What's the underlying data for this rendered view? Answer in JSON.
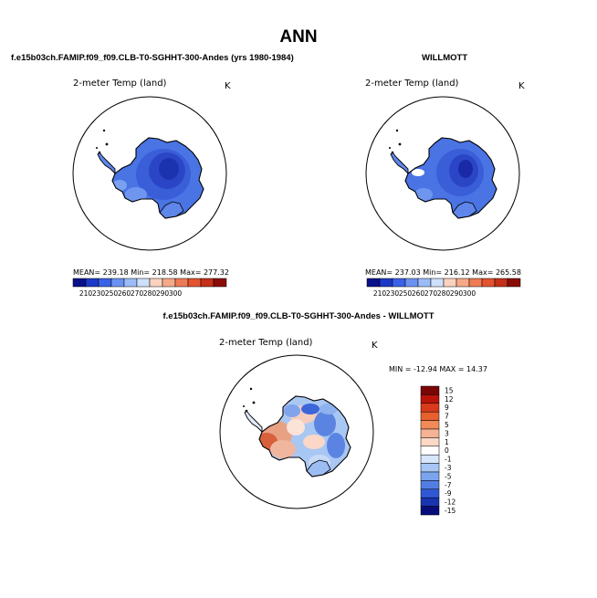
{
  "figure": {
    "title": "ANN",
    "panels": [
      {
        "id": "model",
        "case": "f.e15b03ch.FAMIP.f09_f09.CLB-T0-SGHHT-300-Andes (yrs 1980-1984)",
        "variable": "2-meter Temp (land)",
        "units": "K",
        "stats": "MEAN= 239.18   Min= 218.58   Max= 277.32",
        "colorbar": {
          "ticks": [
            "210",
            "230",
            "250",
            "260",
            "270",
            "280",
            "290",
            "300"
          ],
          "colors": [
            "#08108a",
            "#1c38c8",
            "#3a62e6",
            "#6a92f2",
            "#9cbcf8",
            "#cfe0fb",
            "#fbd2bf",
            "#f6a988",
            "#ee7b55",
            "#e3532f",
            "#c4301a",
            "#8a0c06"
          ]
        }
      },
      {
        "id": "obs",
        "case": "WILLMOTT",
        "variable": "2-meter Temp (land)",
        "units": "K",
        "stats": "MEAN= 237.03   Min= 216.12   Max= 265.58",
        "colorbar": {
          "ticks": [
            "210",
            "230",
            "250",
            "260",
            "270",
            "280",
            "290",
            "300"
          ],
          "colors": [
            "#08108a",
            "#1c38c8",
            "#3a62e6",
            "#6a92f2",
            "#9cbcf8",
            "#cfe0fb",
            "#fbd2bf",
            "#f6a988",
            "#ee7b55",
            "#e3532f",
            "#c4301a",
            "#8a0c06"
          ]
        }
      },
      {
        "id": "diff",
        "case": "f.e15b03ch.FAMIP.f09_f09.CLB-T0-SGHHT-300-Andes - WILLMOTT",
        "variable": "2-meter Temp (land)",
        "units": "K",
        "stats": "MIN = -12.94  MAX =  14.37",
        "colorbar": {
          "ticks": [
            "15",
            "12",
            "9",
            "7",
            "5",
            "3",
            "1",
            "0",
            "-1",
            "-3",
            "-5",
            "-7",
            "-9",
            "-12",
            "-15"
          ],
          "colors": [
            "#7a0606",
            "#b8140a",
            "#d83a1c",
            "#e8602e",
            "#f08a58",
            "#f6b294",
            "#fcd8c6",
            "#ffffff",
            "#d6e6fb",
            "#a6c6f6",
            "#7aa4ee",
            "#527ee4",
            "#3058d4",
            "#1a34b0",
            "#080c7a"
          ]
        }
      }
    ]
  }
}
